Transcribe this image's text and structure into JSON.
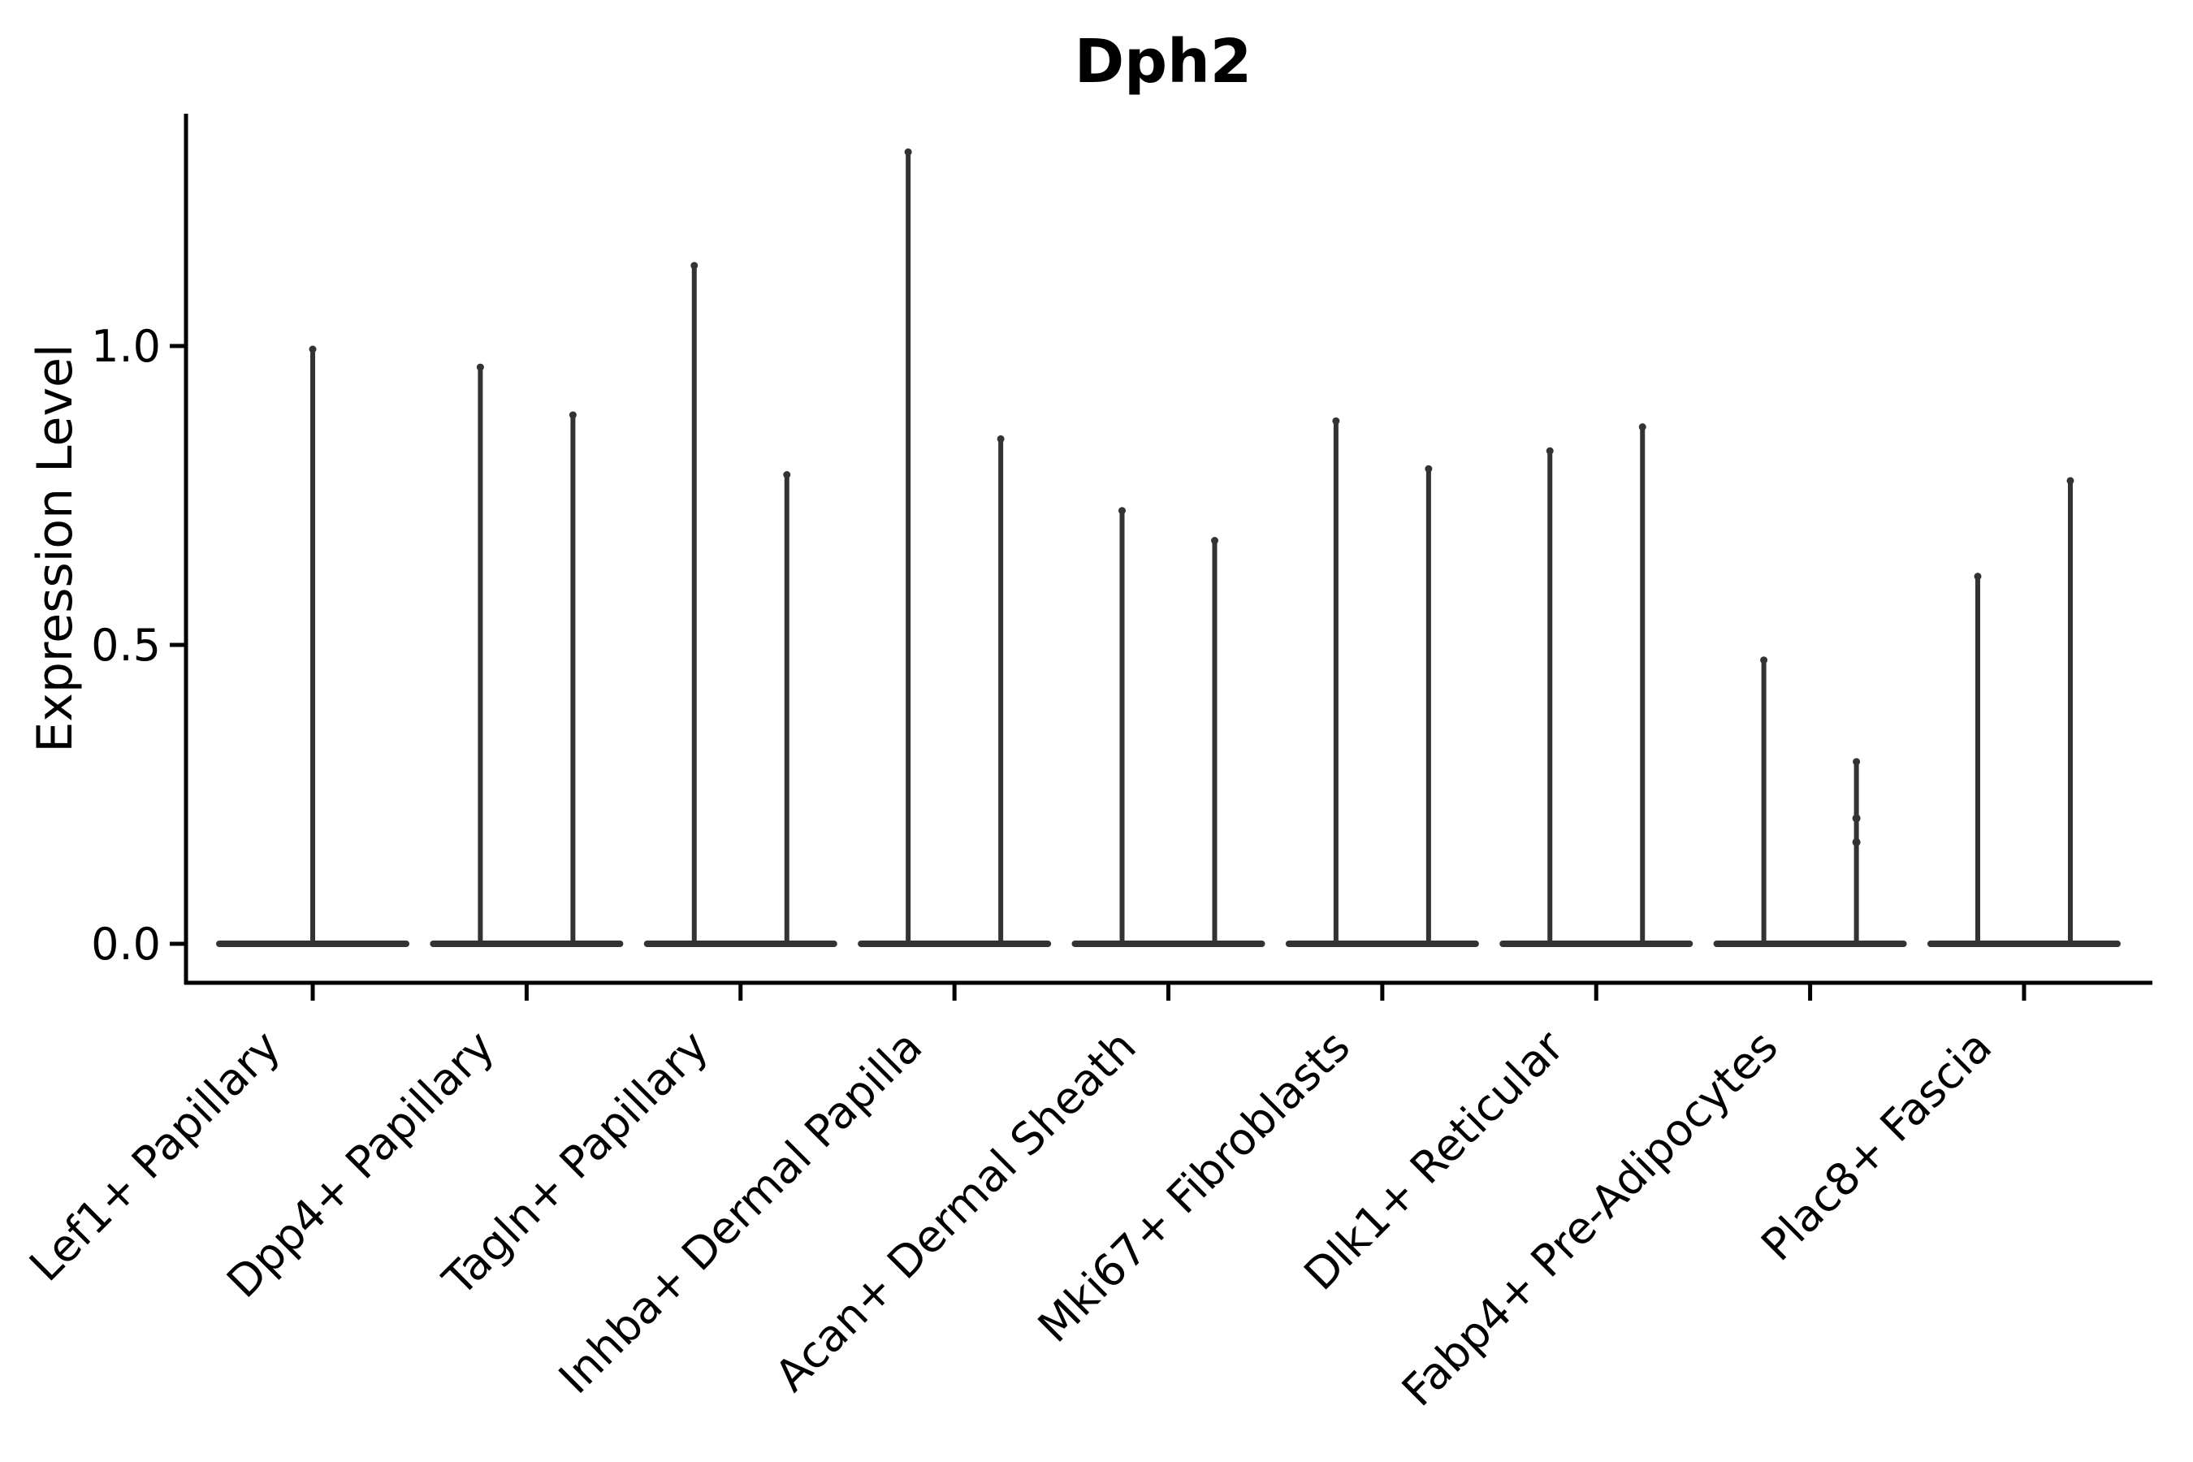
{
  "title": "Dph2",
  "colors": {
    "violin": "#333333",
    "axis": "#000000",
    "text": "#000000",
    "background": "#ffffff"
  },
  "chart_data": {
    "type": "violin",
    "title": "Dph2",
    "xlabel": "",
    "ylabel": "Expression Level",
    "ylim": [
      0,
      1.39
    ],
    "yticks": [
      0.0,
      0.5,
      1.0
    ],
    "ytick_labels": [
      "0.0",
      "0.5",
      "1.0"
    ],
    "grid": false,
    "legend": "none",
    "x_tick_rotation": 45,
    "categories": [
      "Lef1+ Papillary",
      "Dpp4+ Papillary",
      "Tagln+ Papillary",
      "Inhba+ Dermal Papilla",
      "Acan+ Dermal Sheath",
      "Mki67+ Fibroblasts",
      "Dlk1+ Reticular",
      "Fabp4+ Pre-Adipocytes",
      "Plac8+ Fascia"
    ],
    "series": [
      {
        "category": "Lef1+ Papillary",
        "violins": [
          {
            "side": "center",
            "max_expression": 1.0
          }
        ]
      },
      {
        "category": "Dpp4+ Papillary",
        "violins": [
          {
            "side": "left",
            "max_expression": 0.97
          },
          {
            "side": "right",
            "max_expression": 0.89
          }
        ]
      },
      {
        "category": "Tagln+ Papillary",
        "violins": [
          {
            "side": "left",
            "max_expression": 1.14
          },
          {
            "side": "right",
            "max_expression": 0.79
          }
        ]
      },
      {
        "category": "Inhba+ Dermal Papilla",
        "violins": [
          {
            "side": "left",
            "max_expression": 1.33
          },
          {
            "side": "right",
            "max_expression": 0.85
          }
        ]
      },
      {
        "category": "Acan+ Dermal Sheath",
        "violins": [
          {
            "side": "left",
            "max_expression": 0.73
          },
          {
            "side": "right",
            "max_expression": 0.68
          }
        ]
      },
      {
        "category": "Mki67+ Fibroblasts",
        "violins": [
          {
            "side": "left",
            "max_expression": 0.88
          },
          {
            "side": "right",
            "max_expression": 0.8
          }
        ]
      },
      {
        "category": "Dlk1+ Reticular",
        "violins": [
          {
            "side": "left",
            "max_expression": 0.83
          },
          {
            "side": "right",
            "max_expression": 0.87
          }
        ]
      },
      {
        "category": "Fabp4+ Pre-Adipocytes",
        "violins": [
          {
            "side": "left",
            "max_expression": 0.48
          },
          {
            "side": "right",
            "max_expression": 0.31,
            "point_values": [
              0.21,
              0.17
            ]
          }
        ]
      },
      {
        "category": "Plac8+ Fascia",
        "violins": [
          {
            "side": "left",
            "max_expression": 0.62
          },
          {
            "side": "right",
            "max_expression": 0.78
          }
        ]
      }
    ]
  }
}
